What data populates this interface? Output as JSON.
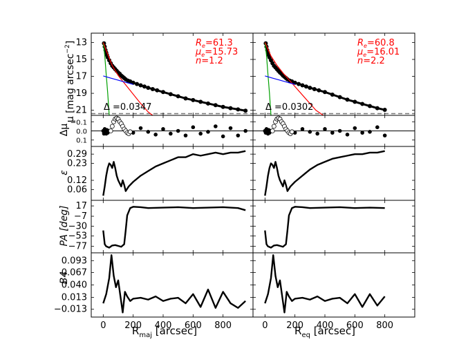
{
  "figure": {
    "x_axis_labels": [
      "R",
      "maj",
      " [arcsec]",
      "R",
      "eq",
      " [arcsec]"
    ],
    "y_axis_labels": {
      "mu": [
        "μ [mag arcsec",
        "−2",
        "]"
      ],
      "dmu": "Δμ",
      "eps": "ε",
      "pa": "PA [deg]",
      "b4": "B4"
    }
  },
  "chart_data": [
    {
      "type": "line",
      "panel": "surface-brightness-major",
      "xlabel": "R_maj [arcsec]",
      "ylabel": "μ [mag arcsec^-2]",
      "xlim": [
        -80,
        1000
      ],
      "ylim": [
        21.6,
        11.9
      ],
      "y_inverted": true,
      "xticks": [
        0,
        200,
        400,
        600,
        800
      ],
      "yticks": [
        13,
        15,
        17,
        19,
        21
      ],
      "annotations": {
        "re": [
          "R",
          "e",
          "=61.3"
        ],
        "mue": [
          "μ",
          "e",
          "=15.73"
        ],
        "n": [
          "n",
          "=1.2"
        ],
        "delta": "Δ =0.0347"
      },
      "threshold_line": 21.4,
      "series": [
        {
          "name": "data",
          "style": "markers",
          "x": [
            5,
            10,
            15,
            20,
            25,
            30,
            40,
            50,
            60,
            70,
            80,
            90,
            100,
            110,
            120,
            130,
            140,
            150,
            165,
            180,
            200,
            225,
            250,
            275,
            300,
            330,
            360,
            400,
            450,
            500,
            550,
            600,
            650,
            700,
            750,
            800,
            850,
            900,
            950
          ],
          "y": [
            13.1,
            13.5,
            13.9,
            14.2,
            14.5,
            14.75,
            15.1,
            15.45,
            15.75,
            15.95,
            16.15,
            16.35,
            16.55,
            16.7,
            16.9,
            17.05,
            17.2,
            17.35,
            17.5,
            17.6,
            17.75,
            17.9,
            18.05,
            18.2,
            18.35,
            18.5,
            18.65,
            18.85,
            19.1,
            19.35,
            19.6,
            19.8,
            20.0,
            20.2,
            20.4,
            20.6,
            20.75,
            20.9,
            21.05
          ]
        },
        {
          "name": "green",
          "style": "line",
          "color": "#00a000",
          "x": [
            0,
            10,
            20,
            30,
            40
          ],
          "y": [
            13.0,
            14.5,
            16.8,
            19.0,
            21.6
          ]
        },
        {
          "name": "red",
          "style": "line",
          "color": "#ff0000",
          "x": [
            0,
            30,
            60,
            100,
            150,
            200,
            250,
            300,
            330
          ],
          "y": [
            13.0,
            14.4,
            15.73,
            16.9,
            18.0,
            19.1,
            20.2,
            21.2,
            21.6
          ]
        },
        {
          "name": "blue",
          "style": "line",
          "color": "#0000ff",
          "x": [
            0,
            50,
            100,
            150,
            200
          ],
          "y": [
            16.95,
            17.2,
            17.45,
            17.7,
            17.95
          ]
        }
      ]
    },
    {
      "type": "scatter",
      "panel": "residuals-major",
      "ylabel": "Δμ",
      "xlim": [
        -80,
        1000
      ],
      "ylim": [
        0.17,
        -0.17
      ],
      "y_inverted": true,
      "yticks": [
        -0.1,
        0.0,
        0.1
      ],
      "ytick_labels": [
        "−0.1",
        "0.0",
        "0.1"
      ],
      "series": [
        {
          "name": "filled",
          "style": "filled",
          "x": [
            0,
            5,
            10,
            15,
            20,
            25,
            30,
            40,
            200,
            250,
            300,
            350,
            400,
            450,
            500,
            550,
            600,
            650,
            700,
            750,
            800,
            850,
            900,
            950
          ],
          "y": [
            0.0,
            0.03,
            -0.02,
            0.01,
            0.03,
            -0.01,
            0.02,
            0.0,
            0.02,
            -0.03,
            0.01,
            0.04,
            -0.02,
            0.03,
            0.0,
            0.05,
            -0.04,
            0.03,
            0.01,
            -0.05,
            0.06,
            -0.03,
            0.05,
            0.0
          ]
        },
        {
          "name": "open",
          "style": "open",
          "x": [
            50,
            60,
            70,
            80,
            90,
            100,
            110,
            120,
            130,
            140,
            150,
            160,
            170,
            180
          ],
          "y": [
            0.0,
            -0.05,
            -0.1,
            -0.13,
            -0.14,
            -0.13,
            -0.1,
            -0.08,
            -0.05,
            -0.02,
            0.0,
            0.02,
            0.03,
            0.01
          ]
        }
      ]
    },
    {
      "type": "line",
      "panel": "ellipticity-major",
      "ylabel": "ε",
      "xlim": [
        -80,
        1000
      ],
      "ylim": [
        -0.01,
        0.34
      ],
      "yticks": [
        0.06,
        0.12,
        0.23,
        0.29
      ],
      "ytick_labels": [
        "0.06",
        "0.12",
        "0.23",
        "0.29"
      ],
      "series": [
        {
          "name": "ellipticity",
          "x": [
            0,
            10,
            20,
            30,
            40,
            50,
            60,
            70,
            80,
            90,
            100,
            110,
            120,
            130,
            140,
            150,
            170,
            200,
            250,
            300,
            350,
            400,
            450,
            500,
            550,
            600,
            650,
            700,
            750,
            800,
            850,
            900,
            950
          ],
          "y": [
            0.02,
            0.08,
            0.15,
            0.2,
            0.23,
            0.22,
            0.2,
            0.24,
            0.2,
            0.15,
            0.12,
            0.1,
            0.08,
            0.12,
            0.09,
            0.05,
            0.08,
            0.11,
            0.15,
            0.18,
            0.21,
            0.23,
            0.25,
            0.27,
            0.27,
            0.29,
            0.28,
            0.29,
            0.3,
            0.29,
            0.3,
            0.3,
            0.31
          ]
        }
      ]
    },
    {
      "type": "line",
      "panel": "position-angle-major",
      "ylabel": "PA [deg]",
      "xlim": [
        -80,
        1000
      ],
      "ylim": [
        -92,
        30
      ],
      "yticks": [
        17,
        -7,
        -30,
        -53,
        -77
      ],
      "ytick_labels": [
        "17",
        "−7",
        "−30",
        "−53",
        "−77"
      ],
      "series": [
        {
          "name": "pa",
          "x": [
            0,
            10,
            20,
            40,
            60,
            80,
            100,
            120,
            140,
            150,
            160,
            180,
            200,
            250,
            300,
            400,
            500,
            600,
            700,
            800,
            900,
            950
          ],
          "y": [
            -40,
            -72,
            -77,
            -80,
            -75,
            -74,
            -76,
            -78,
            -72,
            -40,
            -5,
            12,
            15,
            14,
            12,
            13,
            14,
            12,
            13,
            14,
            12,
            7
          ]
        }
      ]
    },
    {
      "type": "line",
      "panel": "b4-major",
      "ylabel": "B4",
      "xlabel": "R_maj [arcsec]",
      "xlim": [
        -80,
        1000
      ],
      "ylim": [
        -0.03,
        0.11
      ],
      "yticks": [
        0.093,
        0.067,
        0.04,
        0.013,
        -0.013
      ],
      "ytick_labels": [
        "0.093",
        "0.067",
        "0.040",
        "0.013",
        "−0.013"
      ],
      "xtick_labels": [
        "0",
        "200",
        "400",
        "600",
        "800"
      ],
      "series": [
        {
          "name": "b4",
          "x": [
            0,
            20,
            40,
            55,
            70,
            85,
            100,
            115,
            130,
            145,
            160,
            180,
            200,
            250,
            300,
            350,
            400,
            450,
            500,
            550,
            600,
            650,
            700,
            750,
            800,
            850,
            900,
            950
          ],
          "y": [
            0.0,
            0.02,
            0.055,
            0.105,
            0.06,
            0.035,
            0.05,
            0.015,
            -0.02,
            0.025,
            0.015,
            0.005,
            0.01,
            0.012,
            0.008,
            0.015,
            0.005,
            0.01,
            0.012,
            0.0,
            0.02,
            -0.008,
            0.03,
            -0.01,
            0.025,
            0.0,
            -0.01,
            0.005
          ]
        }
      ]
    },
    {
      "type": "line",
      "panel": "surface-brightness-equivalent",
      "xlabel": "R_eq [arcsec]",
      "xlim": [
        -80,
        1000
      ],
      "ylim": [
        21.6,
        11.9
      ],
      "y_inverted": true,
      "annotations": {
        "re": [
          "R",
          "e",
          "=60.8"
        ],
        "mue": [
          "μ",
          "e",
          "=16.01"
        ],
        "n": [
          "n",
          "=2.2"
        ],
        "delta": "Δ =0.0302"
      },
      "threshold_line": 21.4,
      "series": [
        {
          "name": "data",
          "style": "markers",
          "x": [
            5,
            10,
            15,
            20,
            25,
            30,
            40,
            50,
            60,
            70,
            80,
            90,
            100,
            110,
            120,
            130,
            140,
            150,
            165,
            180,
            200,
            225,
            250,
            275,
            300,
            330,
            360,
            400,
            450,
            500,
            550,
            600,
            650,
            700,
            750,
            800
          ],
          "y": [
            13.1,
            13.5,
            13.9,
            14.2,
            14.5,
            14.75,
            15.1,
            15.45,
            15.75,
            15.95,
            16.15,
            16.35,
            16.55,
            16.7,
            16.9,
            17.05,
            17.2,
            17.35,
            17.5,
            17.6,
            17.75,
            17.9,
            18.05,
            18.2,
            18.35,
            18.5,
            18.65,
            18.85,
            19.15,
            19.45,
            19.75,
            20.0,
            20.25,
            20.5,
            20.75,
            20.95
          ]
        },
        {
          "name": "green",
          "style": "line",
          "color": "#00a000",
          "x": [
            0,
            10,
            20,
            30,
            40
          ],
          "y": [
            13.0,
            14.5,
            16.8,
            19.0,
            21.6
          ]
        },
        {
          "name": "red",
          "style": "line",
          "color": "#ff0000",
          "x": [
            0,
            40,
            80,
            120,
            160,
            220,
            280,
            340,
            390
          ],
          "y": [
            13.0,
            14.6,
            15.7,
            16.6,
            17.4,
            18.6,
            19.8,
            21.0,
            21.6
          ]
        },
        {
          "name": "blue",
          "style": "line",
          "color": "#0000ff",
          "x": [
            0,
            50,
            100,
            150,
            200
          ],
          "y": [
            16.95,
            17.2,
            17.45,
            17.7,
            17.95
          ]
        }
      ]
    },
    {
      "type": "scatter",
      "panel": "residuals-equivalent",
      "xlim": [
        -80,
        1000
      ],
      "ylim": [
        0.17,
        -0.17
      ],
      "y_inverted": true,
      "series": [
        {
          "name": "filled",
          "style": "filled",
          "x": [
            0,
            5,
            10,
            15,
            20,
            25,
            30,
            40,
            200,
            250,
            300,
            350,
            400,
            450,
            500,
            550,
            600,
            650,
            700,
            750,
            800
          ],
          "y": [
            0.0,
            0.02,
            -0.02,
            0.01,
            0.03,
            -0.01,
            0.02,
            0.0,
            0.02,
            -0.02,
            0.01,
            0.03,
            -0.02,
            0.02,
            0.0,
            0.04,
            -0.03,
            0.02,
            0.01,
            -0.04,
            0.05
          ]
        },
        {
          "name": "open",
          "style": "open",
          "x": [
            50,
            60,
            70,
            80,
            90,
            100,
            110,
            120,
            130,
            140,
            150,
            160,
            170,
            180
          ],
          "y": [
            0.0,
            -0.05,
            -0.1,
            -0.13,
            -0.14,
            -0.13,
            -0.1,
            -0.08,
            -0.05,
            -0.02,
            0.0,
            0.02,
            0.03,
            0.01
          ]
        }
      ]
    },
    {
      "type": "line",
      "panel": "ellipticity-equivalent",
      "xlim": [
        -80,
        1000
      ],
      "ylim": [
        -0.01,
        0.34
      ],
      "series": [
        {
          "name": "ellipticity",
          "x": [
            0,
            10,
            20,
            30,
            40,
            50,
            60,
            70,
            80,
            90,
            100,
            110,
            120,
            130,
            140,
            150,
            170,
            200,
            250,
            300,
            350,
            400,
            450,
            500,
            550,
            600,
            650,
            700,
            750,
            800
          ],
          "y": [
            0.02,
            0.08,
            0.15,
            0.2,
            0.23,
            0.22,
            0.2,
            0.24,
            0.2,
            0.15,
            0.12,
            0.1,
            0.08,
            0.12,
            0.09,
            0.05,
            0.08,
            0.11,
            0.15,
            0.19,
            0.22,
            0.24,
            0.26,
            0.27,
            0.28,
            0.29,
            0.29,
            0.3,
            0.3,
            0.31
          ]
        }
      ]
    },
    {
      "type": "line",
      "panel": "position-angle-equivalent",
      "xlim": [
        -80,
        1000
      ],
      "ylim": [
        -92,
        30
      ],
      "series": [
        {
          "name": "pa",
          "x": [
            0,
            10,
            20,
            40,
            60,
            80,
            100,
            120,
            140,
            150,
            160,
            180,
            200,
            250,
            300,
            400,
            500,
            600,
            700,
            800
          ],
          "y": [
            -40,
            -72,
            -77,
            -80,
            -75,
            -74,
            -76,
            -78,
            -72,
            -40,
            -5,
            12,
            15,
            14,
            12,
            13,
            14,
            12,
            13,
            12
          ]
        }
      ]
    },
    {
      "type": "line",
      "panel": "b4-equivalent",
      "xlabel": "R_eq [arcsec]",
      "xlim": [
        -80,
        1000
      ],
      "ylim": [
        -0.03,
        0.11
      ],
      "xtick_labels": [
        "0",
        "200",
        "400",
        "600",
        "800"
      ],
      "series": [
        {
          "name": "b4",
          "x": [
            0,
            20,
            40,
            55,
            70,
            85,
            100,
            115,
            130,
            145,
            160,
            180,
            200,
            250,
            300,
            350,
            400,
            450,
            500,
            550,
            600,
            650,
            700,
            750,
            800
          ],
          "y": [
            0.0,
            0.02,
            0.055,
            0.105,
            0.06,
            0.035,
            0.05,
            0.015,
            -0.02,
            0.025,
            0.015,
            0.005,
            0.01,
            0.012,
            0.008,
            0.015,
            0.005,
            0.01,
            0.012,
            0.0,
            0.02,
            -0.008,
            0.02,
            -0.005,
            0.015
          ]
        }
      ]
    }
  ]
}
